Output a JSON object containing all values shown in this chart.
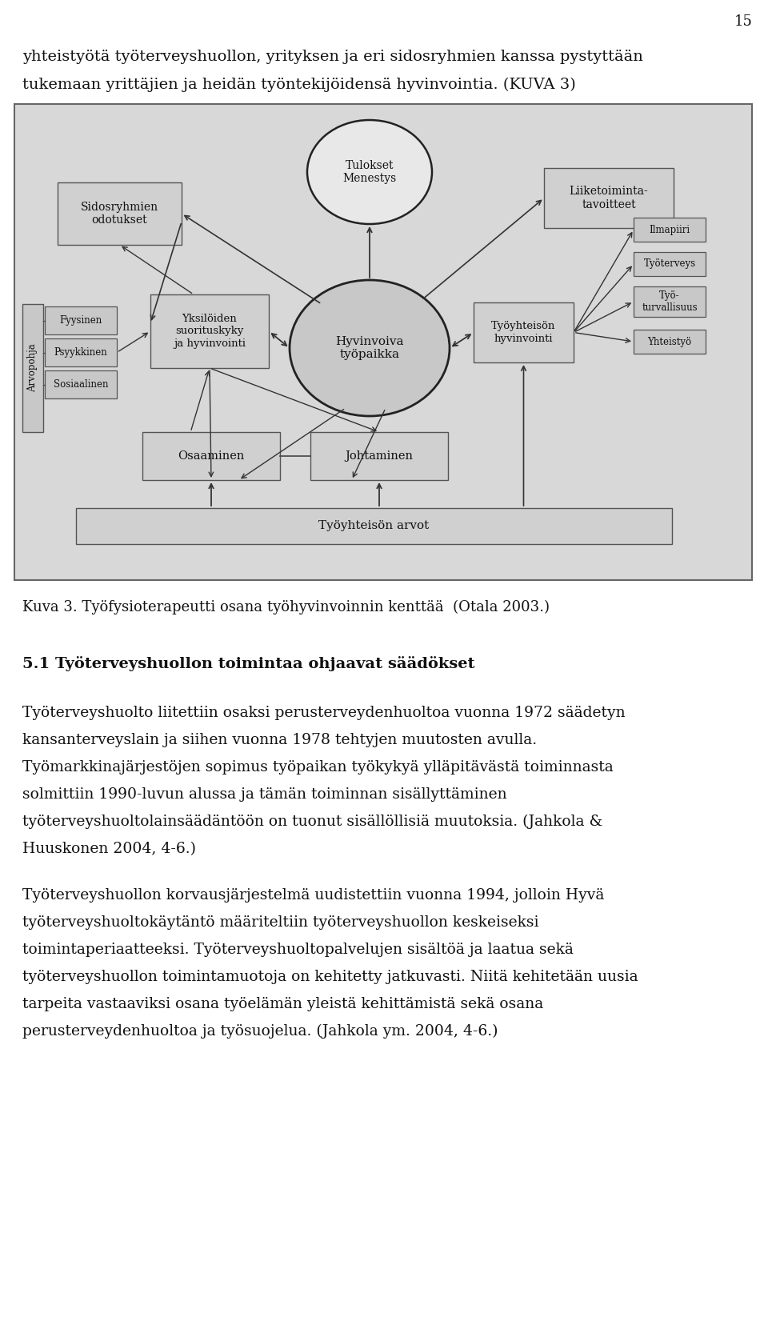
{
  "page_number": "15",
  "bg_color": "#ffffff",
  "diagram_bg": "#d8d8d8",
  "box_fill": "#d0d0d0",
  "box_edge": "#555555",
  "line1": "yhteistyötä työterveyshuollon, yrityksen ja eri sidosryhmien kanssa pystyttään",
  "line2": "tukemaan yrittäjien ja heidän työntekijöidensä hyvinvointia. (KUVA 3)",
  "caption": "Kuva 3. Työfysioterapeutti osana työhyvinvoinnin kenttää  (Otala 2003.)",
  "section_title": "5.1 Työterveyshuollon toimintaa ohjaavat säädökset",
  "para1": [
    "Työterveyshuolto liitettiin osaksi perusterveydenhuoltoa vuonna 1972 säädetyn",
    "kansanterveyslain ja siihen vuonna 1978 tehtyjen muutosten avulla.",
    "Työmarkkinajärjestöjen sopimus työpaikan työkykyä ylläpitävästä toiminnasta",
    "solmittiin 1990-luvun alussa ja tämän toiminnan sisällyttäminen",
    "työterveyshuoltolainsäädäntöön on tuonut sisällöllisiä muutoksia. (Jahkola &",
    "Huuskonen 2004, 4-6.)"
  ],
  "para2": [
    "Työterveyshuollon korvausjärjestelmä uudistettiin vuonna 1994, jolloin Hyvä",
    "työterveyshuoltokäytäntö määriteltiin työterveyshuollon keskeiseksi",
    "toimintaperiaatteeksi. Työterveyshuoltopalvelujen sisältöä ja laatua sekä",
    "työterveyshuollon toimintamuotoja on kehitetty jatkuvasti. Niitä kehitetään uusia",
    "tarpeita vastaaviksi osana työelämän yleistä kehittämistä sekä osana",
    "perusterveydenhuoltoa ja työsuojelua. (Jahkola ym. 2004, 4-6.)"
  ]
}
